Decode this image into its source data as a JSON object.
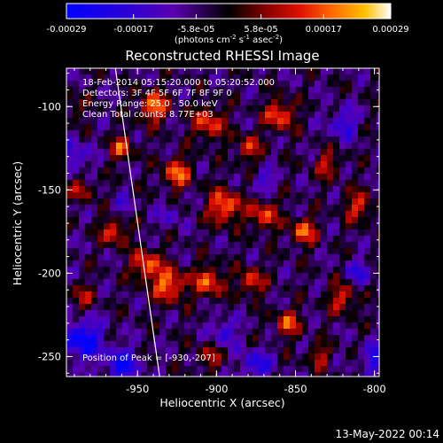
{
  "chart_data": {
    "type": "heatmap",
    "title": "Reconstructed RHESSI Image",
    "xlabel": "Heliocentric X (arcsec)",
    "ylabel": "Heliocentric Y (arcsec)",
    "xlim": [
      -995,
      -797
    ],
    "ylim": [
      -262,
      -77
    ],
    "x_ticks": [
      {
        "value": -950,
        "label": "-950"
      },
      {
        "value": -900,
        "label": "-900"
      },
      {
        "value": -850,
        "label": "-850"
      },
      {
        "value": -800,
        "label": "-800"
      }
    ],
    "y_ticks": [
      {
        "value": -100,
        "label": "-100"
      },
      {
        "value": -150,
        "label": "-150"
      },
      {
        "value": -200,
        "label": "-200"
      },
      {
        "value": -250,
        "label": "-250"
      }
    ],
    "colorbar": {
      "range": [
        -0.00029,
        0.00029
      ],
      "unit_label": "(photons cm",
      "unit_sup1": "-2",
      "unit_mid1": " s",
      "unit_sup2": "-1",
      "unit_mid2": " asec",
      "unit_sup3": "-2",
      "unit_end": ")",
      "ticks": [
        {
          "value": -0.00029,
          "label": "-0.00029"
        },
        {
          "value": -0.00017,
          "label": "-0.00017"
        },
        {
          "value": -5.8e-05,
          "label": "-5.8e-05"
        },
        {
          "value": 5.8e-05,
          "label": "5.8e-05"
        },
        {
          "value": 0.00017,
          "label": "0.00017"
        },
        {
          "value": 0.00029,
          "label": "0.00029"
        }
      ]
    },
    "annotations": {
      "time_range": "18-Feb-2014 05:15:20.000 to 05:20:52.000",
      "detectors": "Detectors: 3F 4F 5F 6F 7F 8F 9F 0",
      "energy_range": "Energy Range: 25.0 - 50.0 keV",
      "clean": "Clean        Total counts: 8.77E+03",
      "peak": "Position of Peak = [-930,-207]"
    },
    "peak_position": [
      -930,
      -207
    ],
    "limb_line": [
      [
        -964,
        -77
      ],
      [
        -936,
        -262
      ]
    ],
    "grid": false,
    "legend": "none"
  },
  "footer": {
    "date": "13-May-2022 00:14"
  }
}
